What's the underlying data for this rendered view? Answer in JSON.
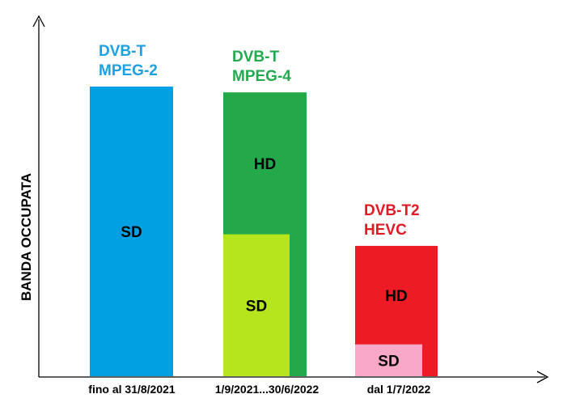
{
  "chart_data": {
    "type": "bar",
    "ylabel": "BANDA OCCUPATA",
    "xlabel": "",
    "grid": false,
    "legend": "none",
    "ylim": [
      0,
      100
    ],
    "categories": [
      "fino al 31/8/2021",
      "1/9/2021...30/6/2022",
      "dal 1/7/2022"
    ],
    "groups": [
      {
        "category": "fino al 31/8/2021",
        "title_lines": [
          "DVB-T",
          "MPEG-2"
        ],
        "title_color": "#1BA1E2",
        "total": 100,
        "segments": [
          {
            "label": "SD",
            "value": 100,
            "color": "#00A0E3",
            "label_color": "#000000"
          }
        ]
      },
      {
        "category": "1/9/2021...30/6/2022",
        "title_lines": [
          "DVB-T",
          "MPEG-4"
        ],
        "title_color": "#23A94E",
        "total": 98,
        "segments": [
          {
            "label": "HD",
            "value": 98,
            "color": "#23A94A",
            "label_color": "#000000"
          },
          {
            "label": "SD",
            "value": 49,
            "color": "#B5E61D",
            "label_color": "#000000"
          }
        ]
      },
      {
        "category": "dal 1/7/2022",
        "title_lines": [
          "DVB-T2",
          "HEVC"
        ],
        "title_color": "#E01B24",
        "total": 45,
        "segments": [
          {
            "label": "HD",
            "value": 45,
            "color": "#ED1C24",
            "label_color": "#000000"
          },
          {
            "label": "SD",
            "value": 11,
            "color": "#F9A8C8",
            "label_color": "#000000"
          }
        ]
      }
    ]
  }
}
